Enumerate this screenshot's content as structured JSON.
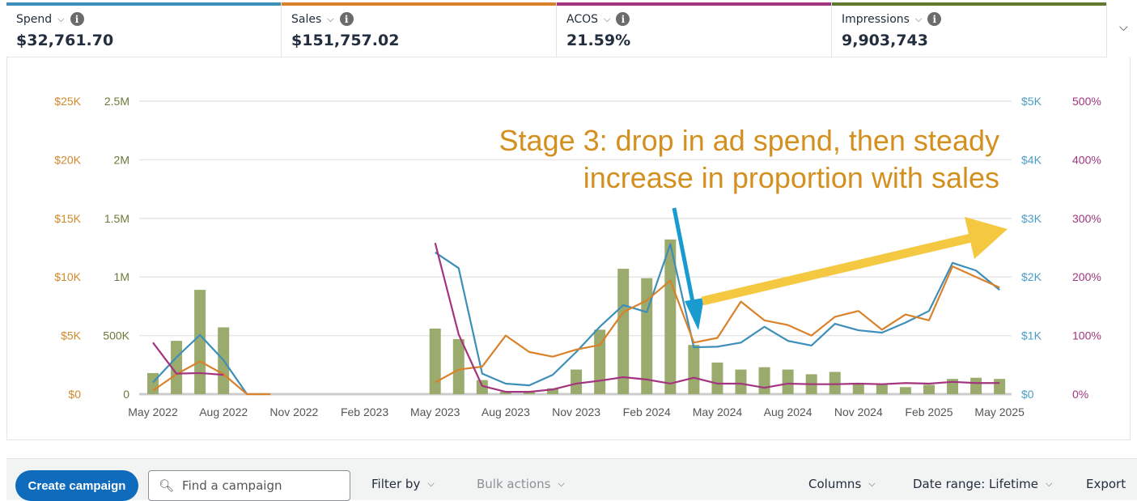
{
  "metrics": [
    {
      "label": "Spend",
      "value": "$32,761.70",
      "color": "#3d8eb9"
    },
    {
      "label": "Sales",
      "value": "$151,757.02",
      "color": "#d9822b"
    },
    {
      "label": "ACOS",
      "value": "21.59%",
      "color": "#a3347f"
    },
    {
      "label": "Impressions",
      "value": "9,903,743",
      "color": "#5f7a2e"
    }
  ],
  "icons": {
    "chevron": "chevron-down-icon",
    "info": "info-icon",
    "search": "search-icon"
  },
  "annotation": {
    "line1": "Stage 3: drop in ad spend, then steady",
    "line2": "increase in proportion with sales",
    "color": "#d4901f"
  },
  "chart_data": {
    "type": "bar",
    "x_start": "May 2022",
    "x_ticks": [
      "May 2022",
      "Aug 2022",
      "Nov 2022",
      "Feb 2023",
      "May 2023",
      "Aug 2023",
      "Nov 2023",
      "Feb 2024",
      "May 2024",
      "Aug 2024",
      "Nov 2024",
      "Feb 2025",
      "May 2025"
    ],
    "axes": {
      "sales": {
        "ticks": [
          "$0",
          "$5K",
          "$10K",
          "$15K",
          "$20K",
          "$25K"
        ],
        "range": [
          0,
          25000
        ],
        "color": "#d0892c"
      },
      "impressions": {
        "ticks": [
          "0",
          "500K",
          "1M",
          "1.5M",
          "2M",
          "2.5M"
        ],
        "range": [
          0,
          2500000
        ],
        "color": "#6b7a3a"
      },
      "spend": {
        "ticks": [
          "$0",
          "$1K",
          "$2K",
          "$3K",
          "$4K",
          "$5K"
        ],
        "range": [
          0,
          5000
        ],
        "color": "#4a9cc4"
      },
      "acos": {
        "ticks": [
          "0%",
          "100%",
          "200%",
          "300%",
          "400%",
          "500%"
        ],
        "range": [
          0,
          500
        ],
        "color": "#a0357f"
      }
    },
    "series": [
      {
        "name": "Impressions",
        "kind": "bar",
        "axis": "impressions",
        "color": "#9aab6d",
        "values": [
          180000,
          455000,
          890000,
          570000,
          0,
          0,
          0,
          0,
          0,
          0,
          0,
          0,
          560000,
          470000,
          120000,
          20000,
          20000,
          50000,
          210000,
          550000,
          1070000,
          990000,
          1320000,
          420000,
          270000,
          210000,
          230000,
          210000,
          170000,
          190000,
          90000,
          80000,
          60000,
          80000,
          130000,
          140000,
          130000
        ]
      },
      {
        "name": "Spend",
        "kind": "line",
        "axis": "spend",
        "color": "#3d8eb9",
        "values": [
          200,
          630,
          1010,
          580,
          0,
          null,
          null,
          null,
          null,
          null,
          null,
          null,
          2420,
          2150,
          350,
          180,
          150,
          330,
          720,
          1150,
          1520,
          1400,
          2560,
          800,
          810,
          880,
          1150,
          910,
          830,
          1200,
          1090,
          1050,
          1220,
          1420,
          2240,
          2110,
          1780
        ]
      },
      {
        "name": "Sales",
        "kind": "line",
        "axis": "sales",
        "color": "#d9822b",
        "values": [
          300,
          1700,
          2800,
          1700,
          0,
          0,
          null,
          null,
          null,
          null,
          null,
          null,
          1000,
          2100,
          2350,
          5000,
          3600,
          3200,
          3800,
          4200,
          7000,
          8000,
          9700,
          4400,
          4800,
          7900,
          6300,
          5900,
          5000,
          6600,
          7100,
          5500,
          6800,
          6300,
          10900,
          10000,
          9100
        ]
      },
      {
        "name": "ACOS",
        "kind": "line",
        "axis": "acos",
        "color": "#a3347f",
        "values": [
          88,
          35,
          36,
          33,
          null,
          null,
          null,
          null,
          null,
          null,
          null,
          null,
          258,
          102,
          14,
          4,
          4,
          8,
          18,
          23,
          29,
          25,
          18,
          28,
          18,
          18,
          11,
          18,
          17,
          17,
          18,
          17,
          19,
          18,
          21,
          19,
          19
        ]
      }
    ]
  },
  "toolbar": {
    "create": "Create campaign",
    "search_placeholder": "Find a campaign",
    "filter": "Filter by",
    "bulk": "Bulk actions",
    "columns": "Columns",
    "date_range": "Date range: Lifetime",
    "export": "Export"
  }
}
